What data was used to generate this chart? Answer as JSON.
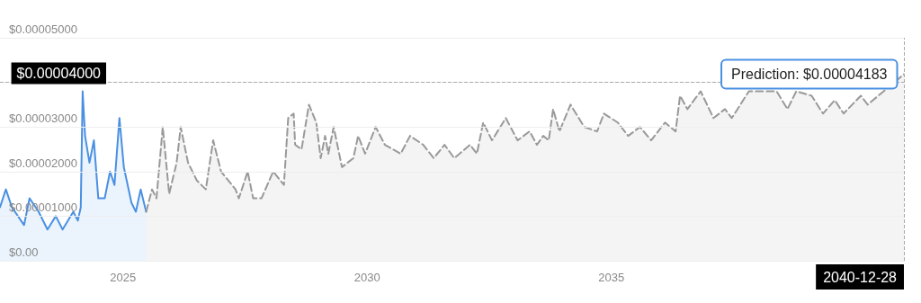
{
  "chart_data": {
    "type": "area",
    "xlim": [
      "2022-06-27",
      "2040-12-28"
    ],
    "xticks": [
      "2025",
      "2030",
      "2035"
    ],
    "ylim": [
      0,
      5e-05
    ],
    "yticks": [
      {
        "value": 0,
        "label": "$0.00"
      },
      {
        "value": 1e-05,
        "label": "$0.00001000"
      },
      {
        "value": 2e-05,
        "label": "$0.00002000"
      },
      {
        "value": 3e-05,
        "label": "$0.00003000"
      },
      {
        "value": 4e-05,
        "label": null
      },
      {
        "value": 5e-05,
        "label": "$0.00005000"
      }
    ],
    "grid": "y",
    "marker": "none",
    "series": [
      {
        "color": "#4a90e2",
        "line_style": "solid",
        "x": [
          "2022-06-27",
          "2022-08-10",
          "2022-09-24",
          "2022-12-24",
          "2023-02-03",
          "2023-04-12",
          "2023-06-17",
          "2023-08-18",
          "2023-10-08",
          "2023-12-27",
          "2024-01-30",
          "2024-02-21",
          "2024-03-06",
          "2024-03-24",
          "2024-04-26",
          "2024-05-29",
          "2024-07-01",
          "2024-08-18",
          "2024-09-27",
          "2024-10-30",
          "2024-12-06",
          "2025-01-08",
          "2025-03-06",
          "2025-04-08",
          "2025-05-14",
          "2025-06-24"
        ],
        "values": [
          1.2e-05,
          1.6e-05,
          1.2e-05,
          8e-06,
          1.4e-05,
          1.1e-05,
          7e-06,
          1e-05,
          7e-06,
          1.1e-05,
          9e-06,
          1.2e-05,
          3.8e-05,
          2.8e-05,
          2.2e-05,
          2.7e-05,
          1.4e-05,
          1.4e-05,
          2e-05,
          1.7e-05,
          3.2e-05,
          2.1e-05,
          1.3e-05,
          1.1e-05,
          1.6e-05,
          1.1e-05
        ]
      },
      {
        "color": "#999999",
        "line_style": "dashed",
        "x": [
          "2025-06-24",
          "2025-08-07",
          "2025-09-09",
          "2025-10-26",
          "2025-12-13",
          "2026-02-07",
          "2026-03-09",
          "2026-05-03",
          "2026-07-08",
          "2026-09-13",
          "2026-11-07",
          "2027-01-05",
          "2027-04-23",
          "2027-05-18",
          "2027-07-23",
          "2027-09-02",
          "2027-11-03",
          "2028-01-30",
          "2028-04-19",
          "2028-05-21",
          "2028-07-01",
          "2028-07-12",
          "2028-08-29",
          "2028-10-23",
          "2028-12-17",
          "2029-01-19",
          "2029-02-21",
          "2029-03-17",
          "2029-04-26",
          "2029-06-27",
          "2029-09-20",
          "2029-10-26",
          "2029-12-17",
          "2030-03-06",
          "2030-05-14",
          "2030-09-09",
          "2030-11-18",
          "2031-02-25",
          "2031-05-14",
          "2031-08-03",
          "2031-10-15",
          "2032-02-10",
          "2032-04-01",
          "2032-05-18",
          "2032-07-23",
          "2032-11-03",
          "2033-01-30",
          "2033-04-30",
          "2033-06-24",
          "2033-08-10",
          "2033-09-20",
          "2033-10-23",
          "2033-12-09",
          "2034-03-02",
          "2034-06-13",
          "2034-09-17",
          "2034-11-07",
          "2035-02-18",
          "2035-05-07",
          "2035-08-03",
          "2035-10-26",
          "2036-02-07",
          "2036-04-26",
          "2036-05-29",
          "2036-07-23",
          "2036-10-30",
          "2037-02-03",
          "2037-04-30",
          "2037-06-20",
          "2037-10-26",
          "2038-05-21",
          "2038-08-10",
          "2038-10-15",
          "2039-02-07",
          "2039-05-03",
          "2039-07-30",
          "2039-10-04",
          "2040-02-10",
          "2040-04-01",
          "2040-12-28"
        ],
        "values": [
          1.1e-05,
          1.6e-05,
          1.4e-05,
          3e-05,
          1.5e-05,
          2.2e-05,
          3e-05,
          2.2e-05,
          1.8e-05,
          1.6e-05,
          2.7e-05,
          2e-05,
          1.6e-05,
          1.4e-05,
          2e-05,
          1.4e-05,
          1.4e-05,
          2e-05,
          1.7e-05,
          3.2e-05,
          3.3e-05,
          2.6e-05,
          2.5e-05,
          3.5e-05,
          3.1e-05,
          2.3e-05,
          2.8e-05,
          2.4e-05,
          3e-05,
          2.1e-05,
          2.3e-05,
          2.8e-05,
          2.4e-05,
          3e-05,
          2.6e-05,
          2.4e-05,
          2.8e-05,
          2.6e-05,
          2.3e-05,
          2.6e-05,
          2.3e-05,
          2.6e-05,
          2.4e-05,
          3.1e-05,
          2.7e-05,
          3.2e-05,
          2.7e-05,
          2.9e-05,
          2.6e-05,
          2.8e-05,
          2.7e-05,
          3.4e-05,
          2.9e-05,
          3.5e-05,
          3e-05,
          2.9e-05,
          3.3e-05,
          3.1e-05,
          2.8e-05,
          3e-05,
          2.7e-05,
          3.1e-05,
          2.9e-05,
          3.7e-05,
          3.4e-05,
          3.8e-05,
          3.2e-05,
          3.4e-05,
          3.2e-05,
          3.8e-05,
          3.8e-05,
          3.4e-05,
          3.8e-05,
          3.7e-05,
          3.3e-05,
          3.6e-05,
          3.3e-05,
          3.7e-05,
          3.5e-05,
          4.183e-05
        ]
      }
    ],
    "ref_lines": [
      {
        "axis": "y",
        "value": 4e-05,
        "label": "$0.00004000",
        "color": "#aaaaaa",
        "line_style": "dashed"
      },
      {
        "axis": "x",
        "value": "2040-12-28",
        "label": "2040-12-28",
        "color": "#aaaaaa",
        "line_style": "dashed"
      }
    ],
    "annotations": [
      {
        "text": "Prediction: $0.00004183",
        "x": "2040-12-28",
        "y": 4.183e-05
      }
    ]
  }
}
